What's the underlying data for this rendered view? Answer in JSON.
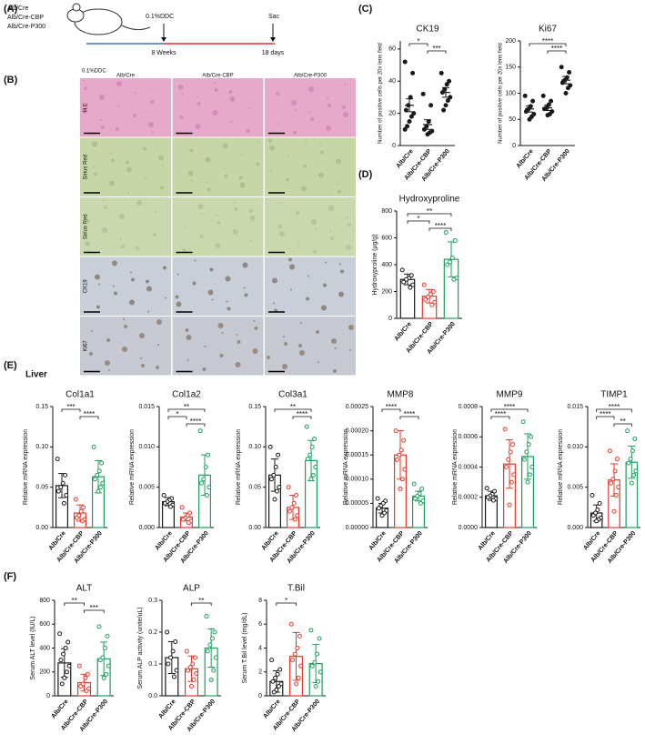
{
  "figure": {
    "panel_labels": [
      "(A)",
      "(B)",
      "(C)",
      "(D)",
      "(E)",
      "(F)"
    ],
    "liver_label": "Liver",
    "schematic": {
      "groups": [
        "Alb/Cre",
        "Alb/Cre-CBP",
        "Alb/Cre-P300"
      ],
      "treatment": "0.1%DDC",
      "endpoint": "Sac",
      "start_label": "8 Weeks",
      "duration": "18 days"
    },
    "histology": {
      "condition": "0.1%DDC",
      "columns": [
        "Alb/Cre",
        "Alb/Cre-CBP",
        "Alb/Cre-P300"
      ],
      "rows": [
        "H.E",
        "Sirius Red",
        "Sirius Red",
        "CK19",
        "Ki67"
      ]
    }
  },
  "chart_data": [
    {
      "type": "dot",
      "title": "CK19",
      "ylabel": "Number of positive cells per 20x lens field",
      "categories": [
        "Alb/Cre",
        "Alb/Cre-CBP",
        "Alb/Cre-P300"
      ],
      "colors": [
        "#1a1a1a",
        "#1a1a1a",
        "#1a1a1a"
      ],
      "values": [
        25,
        13,
        33
      ],
      "errors": [
        4,
        3,
        3
      ],
      "points": [
        [
          52,
          45,
          30,
          25,
          22,
          20,
          18,
          15,
          12,
          10
        ],
        [
          32,
          25,
          15,
          12,
          10,
          9,
          8,
          7
        ],
        [
          45,
          40,
          38,
          35,
          33,
          30,
          28,
          25,
          22
        ]
      ],
      "ylim": [
        0,
        65
      ],
      "yticks": [
        0,
        20,
        40,
        60
      ],
      "significance": [
        {
          "label": "*",
          "between": [
            "Alb/Cre",
            "Alb/Cre-CBP"
          ]
        },
        {
          "label": "***",
          "between": [
            "Alb/Cre-CBP",
            "Alb/Cre-P300"
          ]
        }
      ]
    },
    {
      "type": "dot",
      "title": "Ki67",
      "ylabel": "Number of positive cells per 20x lens field",
      "categories": [
        "Alb/Cre",
        "Alb/Cre-CBP",
        "Alb/Cre-P300"
      ],
      "colors": [
        "#1a1a1a",
        "#1a1a1a",
        "#1a1a1a"
      ],
      "values": [
        70,
        72,
        125
      ],
      "errors": [
        6,
        5,
        7
      ],
      "points": [
        [
          95,
          85,
          75,
          70,
          65,
          60,
          55,
          50
        ],
        [
          95,
          85,
          78,
          72,
          70,
          65,
          60,
          58
        ],
        [
          150,
          140,
          130,
          125,
          120,
          115,
          110,
          100
        ]
      ],
      "ylim": [
        0,
        200
      ],
      "yticks": [
        0,
        50,
        100,
        150,
        200
      ],
      "significance": [
        {
          "label": "****",
          "between": [
            "Alb/Cre",
            "Alb/Cre-P300"
          ]
        },
        {
          "label": "****",
          "between": [
            "Alb/Cre-CBP",
            "Alb/Cre-P300"
          ]
        }
      ]
    },
    {
      "type": "bar",
      "title": "Hydroxyproline",
      "ylabel": "Hydroxyproline (μg/g)",
      "categories": [
        "Alb/Cre",
        "Alb/Cre-CBP",
        "Alb/Cre-P300"
      ],
      "colors": [
        "#1a1a1a",
        "#e8392a",
        "#1e9e5e"
      ],
      "values": [
        290,
        165,
        440
      ],
      "errors": [
        40,
        50,
        130
      ],
      "points": [
        [
          360,
          320,
          300,
          290,
          270,
          250,
          230
        ],
        [
          250,
          200,
          180,
          160,
          140,
          120,
          100
        ],
        [
          640,
          580,
          450,
          420,
          400,
          300,
          290
        ]
      ],
      "ylim": [
        0,
        800
      ],
      "yticks": [
        0,
        200,
        400,
        600,
        800
      ],
      "significance": [
        {
          "label": "**",
          "between": [
            "Alb/Cre",
            "Alb/Cre-P300"
          ]
        },
        {
          "label": "*",
          "between": [
            "Alb/Cre",
            "Alb/Cre-CBP"
          ]
        },
        {
          "label": "****",
          "between": [
            "Alb/Cre-CBP",
            "Alb/Cre-P300"
          ]
        }
      ]
    },
    {
      "type": "bar",
      "title": "Col1a1",
      "ylabel": "Relative mRNA expression",
      "categories": [
        "Alb/Cre",
        "Alb/Cre-CBP",
        "Alb/Cre-P300"
      ],
      "colors": [
        "#1a1a1a",
        "#e8392a",
        "#1e9e5e"
      ],
      "values": [
        0.052,
        0.018,
        0.063
      ],
      "errors": [
        0.015,
        0.01,
        0.02
      ],
      "points": [
        [
          0.085,
          0.065,
          0.055,
          0.05,
          0.045,
          0.04,
          0.03
        ],
        [
          0.035,
          0.025,
          0.02,
          0.015,
          0.012,
          0.01,
          0.008
        ],
        [
          0.1,
          0.08,
          0.07,
          0.065,
          0.06,
          0.055,
          0.05,
          0.045
        ]
      ],
      "ylim": [
        0,
        0.15
      ],
      "yticks": [
        {
          "value": 0,
          "label": "0.00"
        },
        0.05,
        {
          "value": 0.1,
          "label": "0.10"
        },
        {
          "value": 0.15,
          "label": "0.15"
        }
      ],
      "significance": [
        {
          "label": "***",
          "between": [
            "Alb/Cre",
            "Alb/Cre-CBP"
          ]
        },
        {
          "label": "****",
          "between": [
            "Alb/Cre-CBP",
            "Alb/Cre-P300"
          ]
        }
      ]
    },
    {
      "type": "bar",
      "title": "Col1a2",
      "ylabel": "Relative mRNA expression",
      "categories": [
        "Alb/Cre",
        "Alb/Cre-CBP",
        "Alb/Cre-P300"
      ],
      "colors": [
        "#1a1a1a",
        "#e8392a",
        "#1e9e5e"
      ],
      "values": [
        0.0032,
        0.0013,
        0.0065
      ],
      "errors": [
        0.0005,
        0.0005,
        0.0025
      ],
      "points": [
        [
          0.004,
          0.0036,
          0.0034,
          0.0032,
          0.003,
          0.0028,
          0.0026
        ],
        [
          0.0025,
          0.0018,
          0.0015,
          0.0012,
          0.001,
          0.0008,
          0.0006
        ],
        [
          0.012,
          0.009,
          0.0075,
          0.006,
          0.0055,
          0.005,
          0.004
        ]
      ],
      "ylim": [
        0,
        0.015
      ],
      "yticks": [
        {
          "value": 0,
          "label": "0.000"
        },
        0.005,
        {
          "value": 0.01,
          "label": "0.010"
        },
        {
          "value": 0.015,
          "label": "0.015"
        }
      ],
      "significance": [
        {
          "label": "**",
          "between": [
            "Alb/Cre",
            "Alb/Cre-P300"
          ]
        },
        {
          "label": "*",
          "between": [
            "Alb/Cre",
            "Alb/Cre-CBP"
          ]
        },
        {
          "label": "****",
          "between": [
            "Alb/Cre-CBP",
            "Alb/Cre-P300"
          ]
        }
      ]
    },
    {
      "type": "bar",
      "title": "Col3a1",
      "ylabel": "Relative mRNA expression",
      "categories": [
        "Alb/Cre",
        "Alb/Cre-CBP",
        "Alb/Cre-P300"
      ],
      "colors": [
        "#1a1a1a",
        "#e8392a",
        "#1e9e5e"
      ],
      "values": [
        0.065,
        0.025,
        0.083
      ],
      "errors": [
        0.02,
        0.015,
        0.025
      ],
      "points": [
        [
          0.1,
          0.09,
          0.075,
          0.065,
          0.06,
          0.05,
          0.045,
          0.035
        ],
        [
          0.05,
          0.04,
          0.03,
          0.025,
          0.02,
          0.015,
          0.01
        ],
        [
          0.125,
          0.11,
          0.1,
          0.09,
          0.085,
          0.075,
          0.065,
          0.06
        ]
      ],
      "ylim": [
        0,
        0.15
      ],
      "yticks": [
        {
          "value": 0,
          "label": "0.00"
        },
        0.05,
        {
          "value": 0.1,
          "label": "0.10"
        },
        {
          "value": 0.15,
          "label": "0.15"
        }
      ],
      "significance": [
        {
          "label": "**",
          "between": [
            "Alb/Cre",
            "Alb/Cre-P300"
          ]
        },
        {
          "label": "****",
          "between": [
            "Alb/Cre-CBP",
            "Alb/Cre-P300"
          ]
        }
      ]
    },
    {
      "type": "bar",
      "title": "MMP8",
      "ylabel": "Relative mRNA expression",
      "categories": [
        "Alb/Cre",
        "Alb/Cre-CBP",
        "Alb/Cre-P300"
      ],
      "colors": [
        "#1a1a1a",
        "#e8392a",
        "#1e9e5e"
      ],
      "values": [
        4e-05,
        0.00015,
        6.5e-05
      ],
      "errors": [
        1e-05,
        5e-05,
        1e-05
      ],
      "points": [
        [
          6e-05,
          5.5e-05,
          5e-05,
          4.5e-05,
          4e-05,
          3.5e-05,
          3e-05,
          2.5e-05
        ],
        [
          0.0002,
          0.00018,
          0.00016,
          0.00015,
          0.00014,
          0.00012,
          0.0001,
          8e-05
        ],
        [
          9e-05,
          8e-05,
          7e-05,
          6.5e-05,
          6e-05,
          5.5e-05,
          5e-05
        ]
      ],
      "ylim": [
        0,
        0.00025
      ],
      "yticks": [
        {
          "value": 0,
          "label": "0.00000"
        },
        5e-05,
        {
          "value": 0.0001,
          "label": "0.00010"
        },
        0.00015,
        {
          "value": 0.0002,
          "label": "0.00020"
        },
        0.00025
      ],
      "significance": [
        {
          "label": "****",
          "between": [
            "Alb/Cre",
            "Alb/Cre-CBP"
          ]
        },
        {
          "label": "****",
          "between": [
            "Alb/Cre-CBP",
            "Alb/Cre-P300"
          ]
        }
      ]
    },
    {
      "type": "bar",
      "title": "MMP9",
      "ylabel": "Relative mRNA expression",
      "categories": [
        "Alb/Cre",
        "Alb/Cre-CBP",
        "Alb/Cre-P300"
      ],
      "colors": [
        "#1a1a1a",
        "#e8392a",
        "#1e9e5e"
      ],
      "values": [
        0.00021,
        0.00042,
        0.00047
      ],
      "errors": [
        3e-05,
        0.00016,
        0.00015
      ],
      "points": [
        [
          0.00026,
          0.00024,
          0.00022,
          0.00021,
          0.0002,
          0.00019,
          0.00018
        ],
        [
          0.00065,
          0.00055,
          0.0005,
          0.00045,
          0.0004,
          0.00035,
          0.0003,
          0.00015
        ],
        [
          0.0007,
          0.0006,
          0.00055,
          0.0005,
          0.00045,
          0.0004,
          0.00035,
          0.0003
        ]
      ],
      "ylim": [
        0,
        0.0008
      ],
      "yticks": [
        {
          "value": 0,
          "label": "0.0000"
        },
        0.0002,
        0.0004,
        0.0006,
        0.0008
      ],
      "significance": [
        {
          "label": "****",
          "between": [
            "Alb/Cre",
            "Alb/Cre-P300"
          ]
        },
        {
          "label": "****",
          "between": [
            "Alb/Cre",
            "Alb/Cre-CBP"
          ]
        }
      ]
    },
    {
      "type": "bar",
      "title": "TIMP1",
      "ylabel": "Relative mRNA expression",
      "categories": [
        "Alb/Cre",
        "Alb/Cre-CBP",
        "Alb/Cre-P300"
      ],
      "colors": [
        "#1a1a1a",
        "#e8392a",
        "#1e9e5e"
      ],
      "values": [
        0.0018,
        0.0059,
        0.0081
      ],
      "errors": [
        0.001,
        0.002,
        0.002
      ],
      "points": [
        [
          0.004,
          0.003,
          0.0022,
          0.0018,
          0.0015,
          0.0012,
          0.001,
          0.0008
        ],
        [
          0.0095,
          0.0085,
          0.007,
          0.006,
          0.0055,
          0.005,
          0.004,
          0.002
        ],
        [
          0.012,
          0.011,
          0.0095,
          0.0085,
          0.008,
          0.007,
          0.0065,
          0.0055
        ]
      ],
      "ylim": [
        0,
        0.015
      ],
      "yticks": [
        {
          "value": 0,
          "label": "0.000"
        },
        0.005,
        {
          "value": 0.01,
          "label": "0.010"
        },
        {
          "value": 0.015,
          "label": "0.015"
        }
      ],
      "significance": [
        {
          "label": "****",
          "between": [
            "Alb/Cre",
            "Alb/Cre-P300"
          ]
        },
        {
          "label": "****",
          "between": [
            "Alb/Cre",
            "Alb/Cre-CBP"
          ]
        },
        {
          "label": "**",
          "between": [
            "Alb/Cre-CBP",
            "Alb/Cre-P300"
          ]
        }
      ]
    },
    {
      "type": "bar",
      "title": "ALT",
      "ylabel": "Serum ALT level (IU/L)",
      "categories": [
        "Alb/Cre",
        "Alb/Cre-CBP",
        "Alb/Cre-P300"
      ],
      "colors": [
        "#1a1a1a",
        "#e8392a",
        "#1e9e5e"
      ],
      "values": [
        275,
        110,
        310
      ],
      "errors": [
        120,
        70,
        140
      ],
      "points": [
        [
          520,
          450,
          400,
          350,
          300,
          250,
          200,
          150,
          100
        ],
        [
          250,
          180,
          150,
          100,
          80,
          60,
          40
        ],
        [
          580,
          500,
          400,
          320,
          300,
          250,
          180,
          150
        ]
      ],
      "ylim": [
        0,
        800
      ],
      "yticks": [
        0,
        200,
        400,
        600,
        800
      ],
      "significance": [
        {
          "label": "**",
          "between": [
            "Alb/Cre",
            "Alb/Cre-CBP"
          ]
        },
        {
          "label": "***",
          "between": [
            "Alb/Cre-CBP",
            "Alb/Cre-P300"
          ]
        }
      ]
    },
    {
      "type": "bar",
      "title": "ALP",
      "ylabel": "Serum ALP activity (unite/uL)",
      "categories": [
        "Alb/Cre",
        "Alb/Cre-CBP",
        "Alb/Cre-P300"
      ],
      "colors": [
        "#1a1a1a",
        "#e8392a",
        "#1e9e5e"
      ],
      "values": [
        0.12,
        0.085,
        0.15
      ],
      "errors": [
        0.05,
        0.04,
        0.06
      ],
      "points": [
        [
          0.2,
          0.17,
          0.14,
          0.12,
          0.1,
          0.08,
          0.06
        ],
        [
          0.14,
          0.12,
          0.1,
          0.09,
          0.08,
          0.07,
          0.05,
          0.03
        ],
        [
          0.25,
          0.2,
          0.18,
          0.16,
          0.14,
          0.12,
          0.08,
          0.05
        ]
      ],
      "ylim": [
        0,
        0.3
      ],
      "yticks": [
        {
          "value": 0,
          "label": "0.0"
        },
        0.1,
        0.2,
        0.3
      ],
      "significance": [
        {
          "label": "**",
          "between": [
            "Alb/Cre-CBP",
            "Alb/Cre-P300"
          ]
        }
      ]
    },
    {
      "type": "bar",
      "title": "T.Bil",
      "ylabel": "Serum T.Bil level (mg/dL)",
      "categories": [
        "Alb/Cre",
        "Alb/Cre-CBP",
        "Alb/Cre-P300"
      ],
      "colors": [
        "#1a1a1a",
        "#e8392a",
        "#1e9e5e"
      ],
      "values": [
        1.2,
        3.3,
        2.7
      ],
      "errors": [
        0.9,
        2,
        1.6
      ],
      "points": [
        [
          3,
          2.2,
          1.8,
          1.5,
          1.2,
          1,
          0.8,
          0.5,
          0.3
        ],
        [
          6,
          5,
          4,
          3.5,
          3,
          2.5,
          1.5,
          1
        ],
        [
          5.5,
          4.8,
          3.5,
          2.8,
          2.5,
          2,
          1.2,
          0.8
        ]
      ],
      "ylim": [
        0,
        8
      ],
      "yticks": [
        0,
        2,
        4,
        6,
        8
      ],
      "significance": [
        {
          "label": "*",
          "between": [
            "Alb/Cre",
            "Alb/Cre-CBP"
          ]
        }
      ]
    }
  ]
}
